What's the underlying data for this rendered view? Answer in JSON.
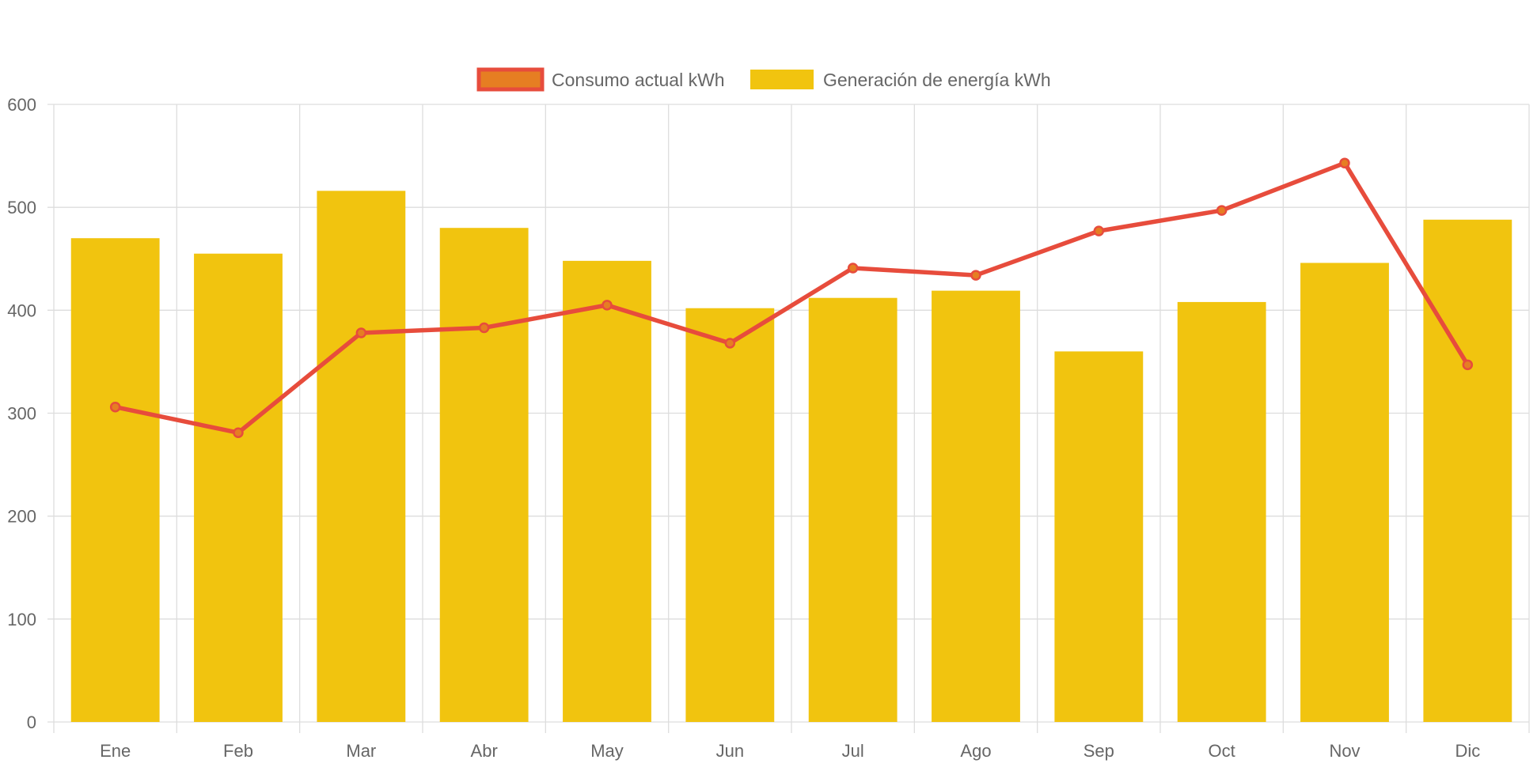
{
  "chart_data": {
    "type": "bar",
    "categories": [
      "Ene",
      "Feb",
      "Mar",
      "Abr",
      "May",
      "Jun",
      "Jul",
      "Ago",
      "Sep",
      "Oct",
      "Nov",
      "Dic"
    ],
    "ylim": [
      0,
      600
    ],
    "yticks": [
      "0",
      "100",
      "200",
      "300",
      "400",
      "500",
      "600"
    ],
    "grid": true,
    "legend_position": "top-center",
    "series": [
      {
        "name": "Consumo actual kWh",
        "type": "line",
        "color": "#e74c3c",
        "point_fill": "#e67e22",
        "values": [
          306,
          281,
          378,
          383,
          405,
          368,
          441,
          434,
          477,
          497,
          543,
          347
        ]
      },
      {
        "name": "Generación de energía kWh",
        "type": "bar",
        "color": "#f1c40f",
        "values": [
          470,
          455,
          516,
          480,
          448,
          402,
          412,
          419,
          360,
          408,
          446,
          488
        ]
      }
    ]
  }
}
